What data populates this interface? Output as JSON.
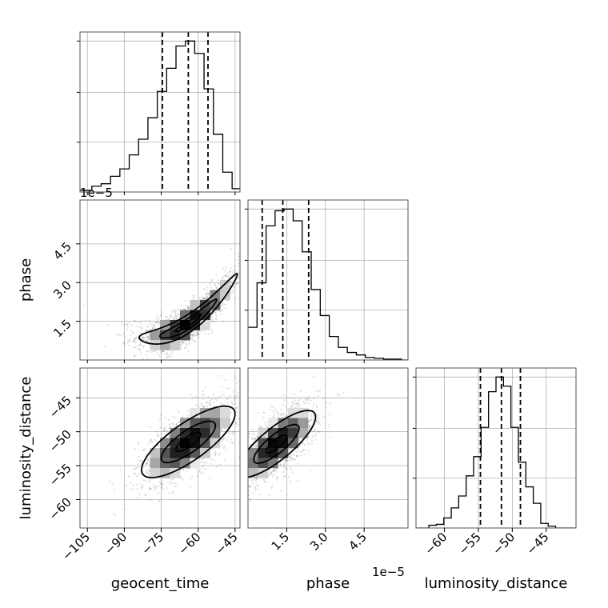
{
  "chart_data": {
    "type": "corner",
    "grid": true,
    "params": [
      {
        "label": "geocent_time",
        "range": [
          -108,
          -43
        ],
        "ticks": [
          -105,
          -90,
          -75,
          -60,
          -45
        ],
        "tick_labels": [
          "−105",
          "−90",
          "−75",
          "−60",
          "−45"
        ],
        "quantiles": [
          -74.5,
          -64.0,
          -56.0
        ]
      },
      {
        "label": "phase",
        "range": [
          0,
          6.2
        ],
        "ticks": [
          1.5,
          3.0,
          4.5
        ],
        "tick_labels": [
          "1.5",
          "3.0",
          "4.5"
        ],
        "offset": "1e−5",
        "quantiles": [
          0.55,
          1.35,
          2.35
        ]
      },
      {
        "label": "luminosity_distance",
        "range": [
          -64.2,
          -40.6
        ],
        "ticks": [
          -60,
          -55,
          -50,
          -45
        ],
        "tick_labels": [
          "−60",
          "−55",
          "−50",
          "−45"
        ],
        "quantiles": [
          -54.7,
          -51.6,
          -48.8
        ]
      }
    ],
    "histograms": [
      {
        "param": "geocent_time",
        "bin_edges": [
          -108,
          -103.2,
          -99.4,
          -95.6,
          -91.8,
          -88,
          -84.2,
          -80.4,
          -76.6,
          -72.8,
          -69,
          -65.2,
          -61.4,
          -57.6,
          -53.8,
          -50,
          -46.2,
          -43
        ],
        "counts": [
          2,
          7,
          10,
          19,
          28,
          45,
          64,
          90,
          122,
          150,
          177,
          183,
          168,
          125,
          70,
          24,
          4
        ]
      },
      {
        "param": "phase",
        "bin_edges": [
          0,
          0.35,
          0.7,
          1.05,
          1.4,
          1.75,
          2.1,
          2.45,
          2.8,
          3.15,
          3.5,
          3.85,
          4.2,
          4.55,
          4.9,
          5.25,
          5.6,
          5.95,
          6.2
        ],
        "counts": [
          39,
          92,
          160,
          178,
          180,
          166,
          129,
          84,
          53,
          28,
          15,
          9,
          6,
          3,
          2,
          1,
          1,
          0
        ]
      },
      {
        "param": "luminosity_distance",
        "bin_edges": [
          -64.2,
          -62.3,
          -61.2,
          -60.1,
          -59,
          -57.9,
          -56.8,
          -55.7,
          -54.6,
          -53.5,
          -52.4,
          -51.3,
          -50.2,
          -49.1,
          -48,
          -46.9,
          -45.8,
          -44.7,
          -43.6,
          -42.5,
          -40.6
        ],
        "counts": [
          0,
          3,
          4,
          11,
          22,
          35,
          57,
          78,
          110,
          149,
          165,
          155,
          110,
          72,
          45,
          27,
          5,
          2,
          0,
          0
        ]
      }
    ],
    "pairs": [
      {
        "x": "geocent_time",
        "y": "phase",
        "mean": [
          -64,
          1.4
        ],
        "sd": [
          10.5,
          0.75
        ],
        "rho": 0.86,
        "curve": 0.035
      },
      {
        "x": "geocent_time",
        "y": "luminosity_distance",
        "mean": [
          -64,
          -51.5
        ],
        "sd": [
          10,
          3.2
        ],
        "rho": 0.68,
        "curve": 0
      },
      {
        "x": "phase",
        "y": "luminosity_distance",
        "mean": [
          1.1,
          -51.8
        ],
        "sd": [
          0.8,
          3.0
        ],
        "rho": 0.7,
        "curve": 0
      }
    ]
  }
}
